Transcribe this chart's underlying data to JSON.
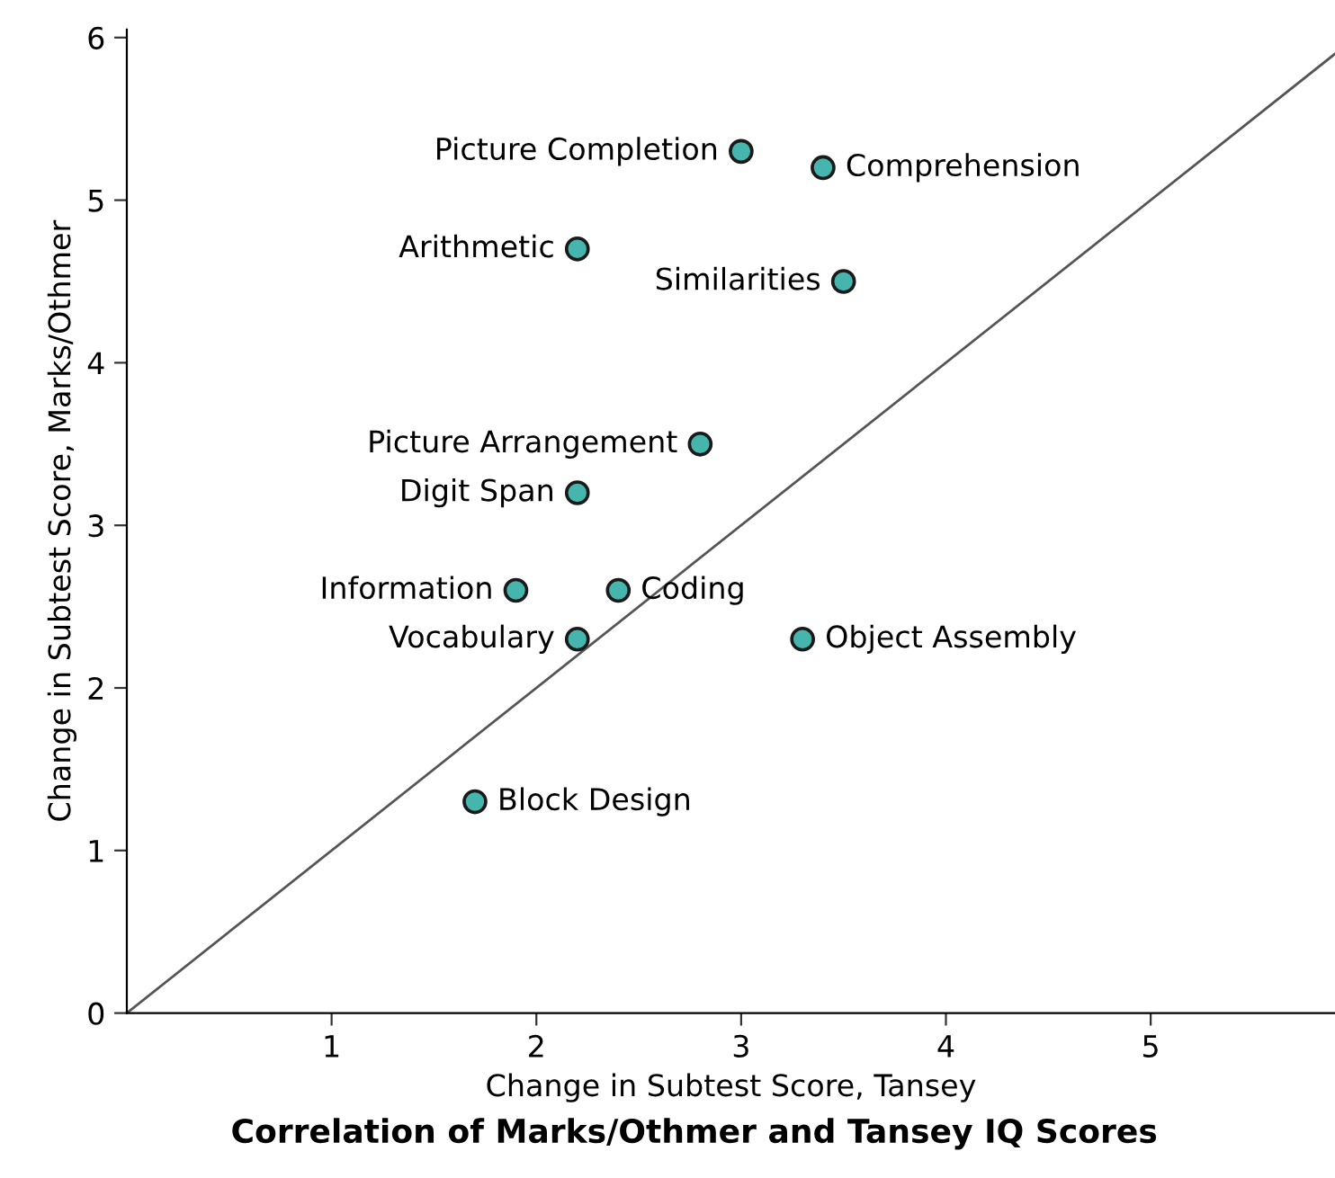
{
  "chart_data": {
    "type": "scatter",
    "title": "Correlation of Marks/Othmer and Tansey IQ Scores",
    "xlabel": "Change in Subtest Score, Tansey",
    "ylabel": "Change in Subtest Score, Marks/Othmer",
    "series": [
      {
        "marker": "circle",
        "color": "#45b5ad",
        "x": [
          3.0,
          3.4,
          2.2,
          3.5,
          2.8,
          2.2,
          1.9,
          2.4,
          2.2,
          3.3,
          1.7
        ],
        "values": [
          5.3,
          5.2,
          4.7,
          4.5,
          3.5,
          3.2,
          2.6,
          2.6,
          2.3,
          2.3,
          1.3
        ]
      },
      {
        "type": "line",
        "color": "#555555",
        "x": [
          0,
          5.9
        ],
        "values": [
          0,
          5.9
        ]
      }
    ],
    "annotations": [
      {
        "text": "Picture Completion",
        "x": 3.0,
        "y": 5.3
      },
      {
        "text": "Comprehension",
        "x": 3.4,
        "y": 5.2
      },
      {
        "text": "Arithmetic",
        "x": 2.2,
        "y": 4.7
      },
      {
        "text": "Similarities",
        "x": 3.5,
        "y": 4.5
      },
      {
        "text": "Picture Arrangement",
        "x": 2.8,
        "y": 3.5
      },
      {
        "text": "Digit Span",
        "x": 2.2,
        "y": 3.2
      },
      {
        "text": "Information",
        "x": 1.9,
        "y": 2.6
      },
      {
        "text": "Coding",
        "x": 2.4,
        "y": 2.6
      },
      {
        "text": "Vocabulary",
        "x": 2.2,
        "y": 2.3
      },
      {
        "text": "Object Assembly",
        "x": 3.3,
        "y": 2.3
      },
      {
        "text": "Block Design",
        "x": 1.7,
        "y": 1.3
      }
    ],
    "xlim": [
      0,
      5.9
    ],
    "ylim": [
      0,
      6.05
    ],
    "xticks": [
      1,
      2,
      3,
      4,
      5
    ],
    "yticks": [
      0,
      1,
      2,
      3,
      4,
      5,
      6
    ],
    "grid": false
  }
}
